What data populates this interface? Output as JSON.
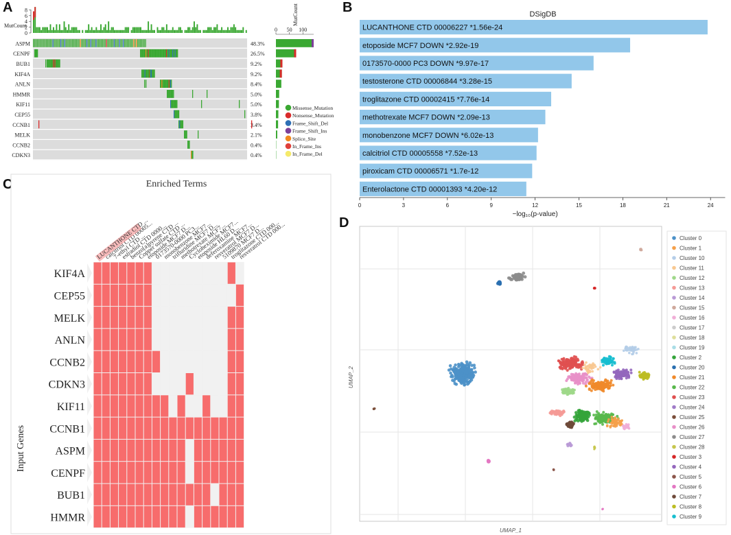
{
  "panels": {
    "a": "A",
    "b": "B",
    "c": "C",
    "d": "D"
  },
  "colors": {
    "missense": "#3aa832",
    "nonsense": "#d92b2b",
    "frame_shift_del": "#2d6fb5",
    "frame_shift_ins": "#7d3f98",
    "splice_site": "#f28a1e",
    "in_frame_ins": "#e0403a",
    "in_frame_del": "#f5ea6a",
    "bar_b": "#92c7ea",
    "heat_on": "#f76c6c",
    "heat_off": "#f1f1f1"
  },
  "chart_data": [
    {
      "type": "oncoplot",
      "panel": "A",
      "top_axis_label": "MutCount",
      "top_ticks": [
        0,
        2,
        4,
        6,
        8
      ],
      "right_axis_label": "MutCount",
      "right_ticks": [
        0,
        50,
        100
      ],
      "genes": [
        "ASPM",
        "CENPF",
        "BUB1",
        "KIF4A",
        "ANLN",
        "HMMR",
        "KIF11",
        "CEP55",
        "CCNB1",
        "MELK",
        "CCNB2",
        "CDKN3"
      ],
      "percentages": [
        "48.3%",
        "26.5%",
        "9.2%",
        "9.2%",
        "8.4%",
        "5.0%",
        "5.0%",
        "3.8%",
        "3.4%",
        "2.1%",
        "0.4%",
        "0.4%"
      ],
      "mut_counts": [
        140,
        75,
        24,
        22,
        20,
        12,
        11,
        9,
        8,
        5,
        1,
        1
      ],
      "legend": [
        "Missense_Mutation",
        "Nonsense_Mutation",
        "Frame_Shift_Del",
        "Frame_Shift_Ins",
        "Splice_Site",
        "In_Frame_Ins",
        "In_Frame_Del"
      ]
    },
    {
      "type": "bar",
      "panel": "B",
      "title": "DSigDB",
      "xlabel": "−log₁₀(p-value)",
      "xlim": [
        0,
        25
      ],
      "xticks": [
        0,
        3,
        6,
        9,
        12,
        15,
        18,
        21,
        24
      ],
      "categories": [
        "LUCANTHONE CTD 00006227  *1.56e-24",
        "etoposide MCF7 DOWN  *2.92e-19",
        "0173570-0000 PC3 DOWN  *9.97e-17",
        "testosterone CTD 00006844  *3.28e-15",
        "troglitazone CTD 00002415  *7.76e-14",
        "methotrexate MCF7 DOWN  *2.09e-13",
        "monobenzone MCF7 DOWN  *6.02e-13",
        "calcitriol CTD 00005558  *7.52e-13",
        "piroxicam CTD 00006571  *1.7e-12",
        "Enterolactone CTD 00001393  *4.20e-12"
      ],
      "values": [
        23.8,
        18.5,
        16.0,
        14.5,
        13.1,
        12.7,
        12.2,
        12.1,
        11.8,
        11.4
      ]
    },
    {
      "type": "heatmap",
      "panel": "C",
      "title": "Enriched Terms",
      "ylabel": "Input Genes",
      "columns": [
        "LUCANTHONE CTD ...",
        "calcitriol CTD 00005...",
        "7-ethyl CTD ...",
        "estradiol CTD 0000...",
        "benzo[a]pyrene CTD ...",
        "Copper sulfate CTD ...",
        "etoposide MCF7 D...",
        "0173570-0000 PC3...",
        "monobenzone MCF7...",
        "trifluridine MCF7 D...",
        "methotrexate MCF7...",
        "Cycloheximide MCF7...",
        "etoposide HL60 D...",
        "deferoxamine MCF7...",
        "resveratrol MCF7 D...",
        "5109870 MCF7 D...",
        "troglitazone CTD 000...",
        "resveratrol CTD 000..."
      ],
      "rows": [
        "KIF4A",
        "CEP55",
        "MELK",
        "ANLN",
        "CCNB2",
        "CDKN3",
        "KIF11",
        "CCNB1",
        "ASPM",
        "CENPF",
        "BUB1",
        "HMMR"
      ],
      "matrix": [
        [
          1,
          1,
          1,
          1,
          1,
          1,
          1,
          0,
          0,
          0,
          0,
          0,
          0,
          0,
          0,
          0,
          1,
          0
        ],
        [
          1,
          1,
          1,
          1,
          1,
          1,
          1,
          0,
          0,
          0,
          0,
          0,
          0,
          0,
          0,
          0,
          0,
          1
        ],
        [
          1,
          1,
          1,
          1,
          1,
          1,
          1,
          0,
          0,
          0,
          0,
          0,
          0,
          0,
          0,
          0,
          1,
          1
        ],
        [
          1,
          1,
          1,
          1,
          1,
          1,
          1,
          0,
          0,
          0,
          0,
          0,
          0,
          0,
          0,
          0,
          1,
          1
        ],
        [
          1,
          1,
          1,
          1,
          1,
          1,
          1,
          1,
          0,
          0,
          0,
          0,
          0,
          0,
          0,
          0,
          1,
          1
        ],
        [
          1,
          1,
          1,
          1,
          1,
          1,
          1,
          0,
          0,
          0,
          0,
          1,
          0,
          0,
          0,
          0,
          1,
          1
        ],
        [
          1,
          1,
          1,
          1,
          1,
          1,
          1,
          1,
          1,
          0,
          1,
          0,
          0,
          1,
          0,
          0,
          1,
          1
        ],
        [
          1,
          1,
          1,
          1,
          1,
          1,
          1,
          1,
          1,
          1,
          1,
          1,
          1,
          1,
          1,
          1,
          1,
          1
        ],
        [
          1,
          1,
          1,
          1,
          1,
          1,
          1,
          1,
          1,
          1,
          1,
          0,
          1,
          1,
          1,
          1,
          1,
          1
        ],
        [
          1,
          1,
          1,
          1,
          1,
          1,
          1,
          1,
          1,
          1,
          1,
          0,
          1,
          1,
          1,
          1,
          1,
          1
        ],
        [
          1,
          1,
          1,
          1,
          1,
          1,
          1,
          1,
          1,
          1,
          1,
          1,
          1,
          1,
          0,
          1,
          1,
          1
        ],
        [
          1,
          1,
          1,
          1,
          1,
          1,
          1,
          1,
          1,
          1,
          1,
          0,
          1,
          1,
          1,
          1,
          1,
          1
        ]
      ]
    },
    {
      "type": "scatter",
      "panel": "D",
      "xlabel": "UMAP_1",
      "ylabel": "UMAP_2",
      "legend": [
        {
          "name": "Cluster 0",
          "color": "#4c91c8"
        },
        {
          "name": "Cluster 1",
          "color": "#f5a04a"
        },
        {
          "name": "Cluster 10",
          "color": "#b4cde8"
        },
        {
          "name": "Cluster 11",
          "color": "#f8c891"
        },
        {
          "name": "Cluster 12",
          "color": "#9fd88a"
        },
        {
          "name": "Cluster 13",
          "color": "#f59a96"
        },
        {
          "name": "Cluster 14",
          "color": "#b99ad6"
        },
        {
          "name": "Cluster 15",
          "color": "#cfa99c"
        },
        {
          "name": "Cluster 16",
          "color": "#f0aed7"
        },
        {
          "name": "Cluster 17",
          "color": "#cccccc"
        },
        {
          "name": "Cluster 18",
          "color": "#dede9a"
        },
        {
          "name": "Cluster 19",
          "color": "#a9dde6"
        },
        {
          "name": "Cluster 2",
          "color": "#34a43a"
        },
        {
          "name": "Cluster 20",
          "color": "#2a6fb0"
        },
        {
          "name": "Cluster 21",
          "color": "#f08a2a"
        },
        {
          "name": "Cluster 22",
          "color": "#58b84b"
        },
        {
          "name": "Cluster 23",
          "color": "#e05050"
        },
        {
          "name": "Cluster 24",
          "color": "#a07cc8"
        },
        {
          "name": "Cluster 25",
          "color": "#7a4e3a"
        },
        {
          "name": "Cluster 26",
          "color": "#e890c8"
        },
        {
          "name": "Cluster 27",
          "color": "#8c8c8c"
        },
        {
          "name": "Cluster 28",
          "color": "#c6c64c"
        },
        {
          "name": "Cluster 3",
          "color": "#d62728"
        },
        {
          "name": "Cluster 4",
          "color": "#9467bd"
        },
        {
          "name": "Cluster 5",
          "color": "#8c564b"
        },
        {
          "name": "Cluster 6",
          "color": "#e377c2"
        },
        {
          "name": "Cluster 7",
          "color": "#6e4a3a"
        },
        {
          "name": "Cluster 8",
          "color": "#bcbd22"
        },
        {
          "name": "Cluster 9",
          "color": "#17becf"
        }
      ]
    }
  ]
}
